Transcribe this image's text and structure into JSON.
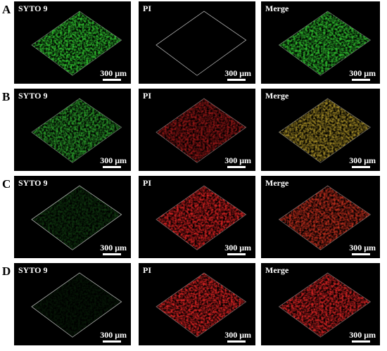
{
  "rows": [
    {
      "label": "A",
      "panels": [
        {
          "title": "SYTO 9",
          "scale": "300 μm"
        },
        {
          "title": "PI",
          "scale": "300 μm"
        },
        {
          "title": "Merge",
          "scale": "300 μm"
        }
      ]
    },
    {
      "label": "B",
      "panels": [
        {
          "title": "SYTO 9",
          "scale": "300 μm"
        },
        {
          "title": "PI",
          "scale": "300 μm"
        },
        {
          "title": "Merge",
          "scale": "300 μm"
        }
      ]
    },
    {
      "label": "C",
      "panels": [
        {
          "title": "SYTO 9",
          "scale": "300 μm"
        },
        {
          "title": "PI",
          "scale": "300 μm"
        },
        {
          "title": "Merge",
          "scale": "300 μm"
        }
      ]
    },
    {
      "label": "D",
      "panels": [
        {
          "title": "SYTO 9",
          "scale": "300 μm"
        },
        {
          "title": "PI",
          "scale": "300 μm"
        },
        {
          "title": "Merge",
          "scale": "300 μm"
        }
      ]
    }
  ]
}
